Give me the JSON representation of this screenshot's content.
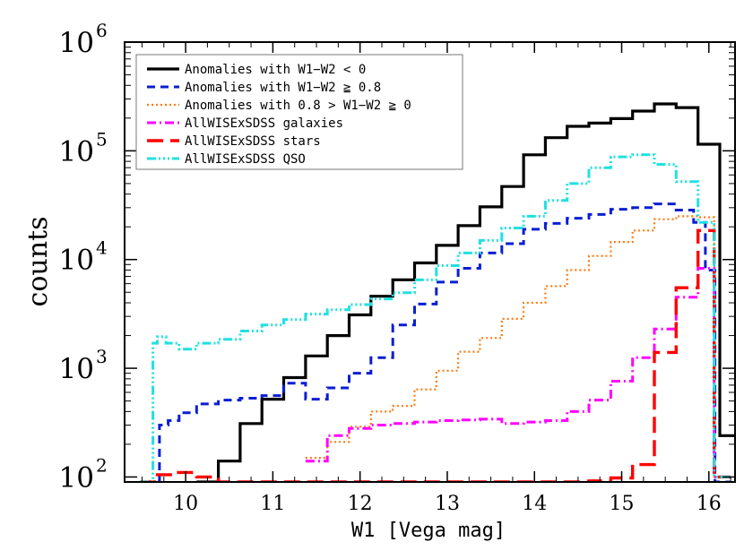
{
  "chart_data": {
    "type": "line",
    "drawstyle": "steps-mid",
    "xlabel": "W1 [Vega mag]",
    "ylabel": "counts",
    "xlim": [
      9.3,
      16.3
    ],
    "ylim": [
      90,
      1000000
    ],
    "yscale": "log",
    "grid": false,
    "legend_position": "top-left",
    "x_ticks": [
      10,
      11,
      12,
      13,
      14,
      15,
      16
    ],
    "y_ticks": [
      {
        "value": 100,
        "base": "10",
        "exp": "2"
      },
      {
        "value": 1000,
        "base": "10",
        "exp": "3"
      },
      {
        "value": 10000,
        "base": "10",
        "exp": "4"
      },
      {
        "value": 100000,
        "base": "10",
        "exp": "5"
      },
      {
        "value": 1000000,
        "base": "10",
        "exp": "6"
      }
    ],
    "bin_width": 0.25,
    "series": [
      {
        "name": "Anomalies with W1−W2 < 0",
        "color": "#000000",
        "dash": "",
        "width": 3.2,
        "x": [
          10.25,
          10.5,
          10.75,
          11.0,
          11.25,
          11.5,
          11.75,
          12.0,
          12.25,
          12.5,
          12.75,
          13.0,
          13.25,
          13.5,
          13.75,
          14.0,
          14.25,
          14.5,
          14.75,
          15.0,
          15.25,
          15.5,
          15.75,
          16.0,
          16.25
        ],
        "y": [
          90,
          140,
          310,
          520,
          820,
          1300,
          2000,
          3100,
          4600,
          6500,
          9300,
          13500,
          20500,
          30500,
          47000,
          92000,
          132000,
          168000,
          180000,
          198000,
          232000,
          270000,
          250000,
          115000,
          240
        ]
      },
      {
        "name": "Anomalies with W1−W2 ≧ 0.8",
        "color": "#0a1ed2",
        "dash": "9 6",
        "width": 3.0,
        "x": [
          9.65,
          9.75,
          9.85,
          10.0,
          10.25,
          10.5,
          10.75,
          11.0,
          11.25,
          11.5,
          11.75,
          12.0,
          12.25,
          12.5,
          12.75,
          13.0,
          13.25,
          13.5,
          13.75,
          14.0,
          14.25,
          14.5,
          14.75,
          15.0,
          15.25,
          15.5,
          15.75,
          15.9,
          16.02,
          16.12
        ],
        "y": [
          90,
          300,
          330,
          390,
          470,
          510,
          530,
          560,
          730,
          520,
          660,
          900,
          1250,
          2500,
          3900,
          6200,
          8300,
          11500,
          14000,
          19000,
          21500,
          24000,
          26000,
          29000,
          30000,
          32500,
          28500,
          22000,
          8000,
          90
        ]
      },
      {
        "name": "Anomalies with 0.8 > W1−W2 ≧ 0",
        "color": "#ff7a10",
        "dash": "2 3",
        "width": 2.2,
        "x": [
          11.5,
          11.75,
          12.0,
          12.25,
          12.5,
          12.75,
          13.0,
          13.25,
          13.5,
          13.75,
          14.0,
          14.25,
          14.5,
          14.75,
          15.0,
          15.25,
          15.5,
          15.75,
          16.0,
          16.12
        ],
        "y": [
          150,
          210,
          290,
          400,
          450,
          640,
          950,
          1420,
          1900,
          2850,
          4000,
          5700,
          8000,
          10800,
          14500,
          18500,
          23500,
          25000,
          24500,
          100
        ]
      },
      {
        "name": "AllWISExSDSS galaxies",
        "color": "#ff00ff",
        "dash": "10 4 2 4",
        "width": 3.0,
        "x": [
          11.5,
          11.75,
          12.0,
          12.25,
          12.5,
          12.75,
          13.0,
          13.25,
          13.5,
          13.75,
          14.0,
          14.25,
          14.5,
          14.75,
          15.0,
          15.25,
          15.5,
          15.75,
          16.0,
          16.12
        ],
        "y": [
          140,
          240,
          280,
          300,
          310,
          320,
          330,
          335,
          340,
          310,
          320,
          330,
          400,
          510,
          760,
          1250,
          2300,
          4500,
          8300,
          100
        ]
      },
      {
        "name": "AllWISExSDSS stars",
        "color": "#ff0000",
        "dash": "18 8",
        "width": 3.4,
        "x": [
          9.6,
          9.75,
          10.0,
          10.25,
          10.5,
          11.5,
          12.0,
          12.5,
          13.0,
          13.5,
          14.0,
          14.5,
          14.75,
          15.0,
          15.25,
          15.5,
          15.75,
          16.0,
          16.12
        ],
        "y": [
          90,
          105,
          110,
          100,
          90,
          90,
          90,
          90,
          90,
          90,
          90,
          90,
          92,
          98,
          130,
          1400,
          5500,
          18500,
          100
        ]
      },
      {
        "name": "AllWISExSDSS QSO",
        "color": "#22e0e0",
        "dash": "10 3 2 3 2 3 2 3",
        "width": 3.0,
        "x": [
          9.6,
          9.65,
          9.7,
          9.85,
          10.0,
          10.25,
          10.5,
          10.75,
          11.0,
          11.25,
          11.5,
          11.75,
          12.0,
          12.25,
          12.5,
          12.75,
          13.0,
          13.25,
          13.5,
          13.75,
          14.0,
          14.25,
          14.5,
          14.75,
          15.0,
          15.25,
          15.5,
          15.75,
          16.0,
          16.12
        ],
        "y": [
          90,
          1700,
          1950,
          1700,
          1500,
          1700,
          1850,
          2200,
          2500,
          2800,
          3150,
          3450,
          3850,
          4350,
          4950,
          6500,
          8800,
          11500,
          15000,
          19500,
          25000,
          35000,
          50000,
          70000,
          88000,
          92000,
          75000,
          52000,
          22000,
          100
        ]
      }
    ]
  }
}
